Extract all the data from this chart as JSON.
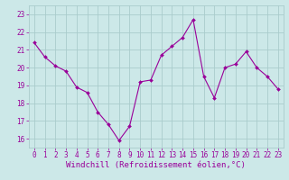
{
  "x": [
    0,
    1,
    2,
    3,
    4,
    5,
    6,
    7,
    8,
    9,
    10,
    11,
    12,
    13,
    14,
    15,
    16,
    17,
    18,
    19,
    20,
    21,
    22,
    23
  ],
  "y": [
    21.4,
    20.6,
    20.1,
    19.8,
    18.9,
    18.6,
    17.5,
    16.8,
    15.9,
    16.7,
    19.2,
    19.3,
    20.7,
    21.2,
    21.7,
    22.7,
    19.5,
    18.3,
    20.0,
    20.2,
    20.9,
    20.0,
    19.5,
    18.8
  ],
  "line_color": "#990099",
  "marker": "D",
  "markersize": 2,
  "linewidth": 0.8,
  "bg_color": "#cce8e8",
  "grid_color": "#aacccc",
  "xlabel": "Windchill (Refroidissement éolien,°C)",
  "xlabel_color": "#990099",
  "ylim": [
    15.5,
    23.5
  ],
  "xlim": [
    -0.5,
    23.5
  ],
  "yticks": [
    16,
    17,
    18,
    19,
    20,
    21,
    22,
    23
  ],
  "xticks": [
    0,
    1,
    2,
    3,
    4,
    5,
    6,
    7,
    8,
    9,
    10,
    11,
    12,
    13,
    14,
    15,
    16,
    17,
    18,
    19,
    20,
    21,
    22,
    23
  ],
  "tick_color": "#990099",
  "tick_fontsize": 5.5,
  "xlabel_fontsize": 6.5
}
